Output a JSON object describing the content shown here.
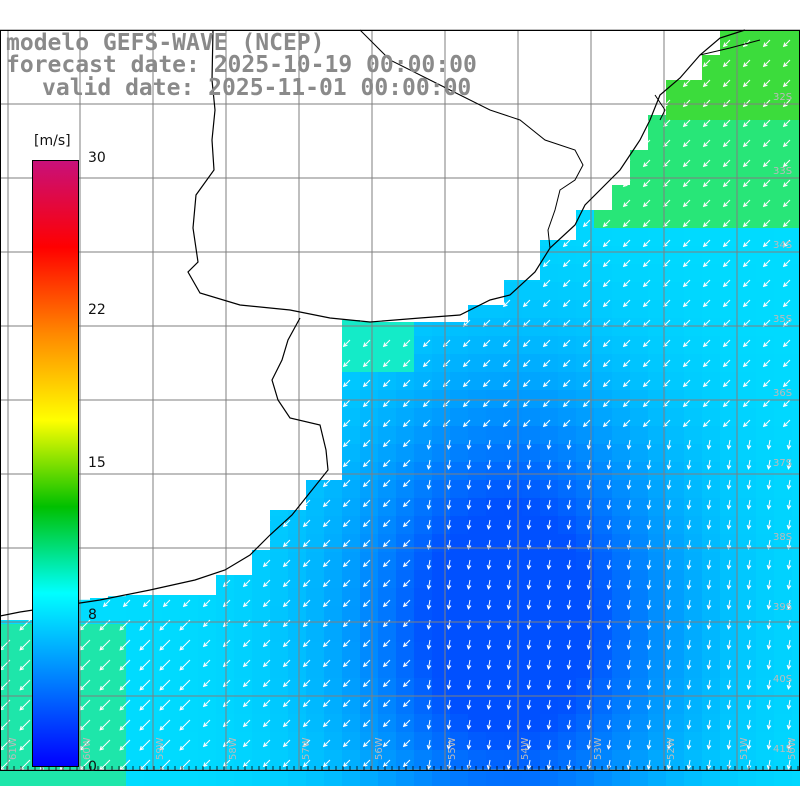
{
  "header": {
    "line1": "modelo GEFS-WAVE (NCEP)",
    "line2": "forecast date: 2025-10-19 00:00:00",
    "line3": "valid date: 2025-11-01 00:00:00"
  },
  "colorbar": {
    "unit": "[m/s]",
    "ticks": [
      "30",
      "22",
      "15",
      "8",
      "0"
    ],
    "stops": [
      "#c8107a",
      "#ff0000",
      "#ff8800",
      "#ffff00",
      "#00c000",
      "#00ffff",
      "#0080ff",
      "#0000ff"
    ]
  },
  "map": {
    "lat_labels": [
      "32S",
      "33S",
      "34S",
      "35S",
      "36S",
      "37S",
      "38S",
      "39S",
      "40S",
      "41S"
    ],
    "lon_labels": [
      "61W",
      "60W",
      "59W",
      "58W",
      "57W",
      "56W",
      "55W",
      "54W",
      "53W",
      "52W",
      "51W",
      "50W"
    ],
    "colors": {
      "land": "#ffffff",
      "grid": "#7f7f7f",
      "coast": "#000000",
      "arrow": "#ffffff"
    }
  }
}
